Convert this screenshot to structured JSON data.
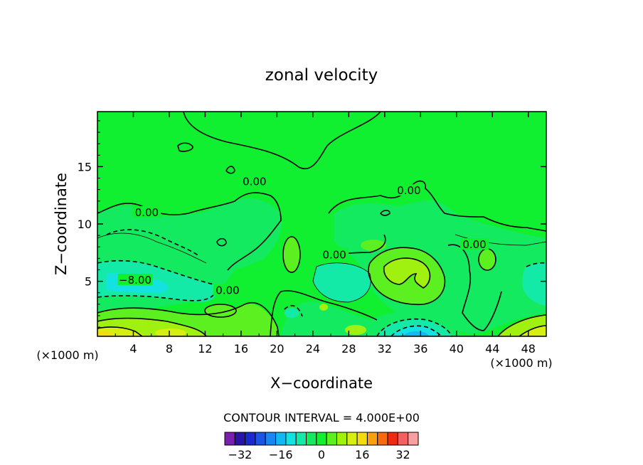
{
  "chart_data": {
    "type": "contour",
    "title": "zonal velocity",
    "xlabel": "X−coordinate",
    "ylabel": "Z−coordinate",
    "x_unit_left": "(×1000 m)",
    "x_unit_right": "(×1000 m)",
    "xlim": [
      0,
      50
    ],
    "ylim": [
      0.2,
      19.8
    ],
    "x_ticks": [
      4,
      8,
      12,
      16,
      20,
      24,
      28,
      32,
      36,
      40,
      44,
      48
    ],
    "y_ticks": [
      5,
      10,
      15
    ],
    "grid": false,
    "contour_interval_text": "CONTOUR INTERVAL = 4.000E+00",
    "contour_labels": [
      {
        "text": "0.00",
        "x": 17.5,
        "y": 13.7
      },
      {
        "text": "0.00",
        "x": 5.5,
        "y": 11.0
      },
      {
        "text": "0.00",
        "x": 34.7,
        "y": 12.9
      },
      {
        "text": "0.00",
        "x": 26.4,
        "y": 7.3
      },
      {
        "text": "0.00",
        "x": 42.0,
        "y": 8.2
      },
      {
        "text": "−8.00",
        "x": 4.2,
        "y": 5.1
      },
      {
        "text": "0.00",
        "x": 14.5,
        "y": 4.2
      }
    ],
    "colorbar": {
      "levels": [
        -36,
        -32,
        -28,
        -24,
        -20,
        -16,
        -12,
        -8,
        -4,
        0,
        4,
        8,
        12,
        16,
        20,
        24,
        28,
        32,
        36
      ],
      "colors": [
        "#7a1fb0",
        "#2a14a8",
        "#1a2ad0",
        "#1a55e6",
        "#1a86f0",
        "#14b8f0",
        "#14e2e0",
        "#14eaa8",
        "#14ea60",
        "#10f030",
        "#5cf020",
        "#a0f010",
        "#d6ee10",
        "#f4dc10",
        "#f8a010",
        "#f86a10",
        "#f02a10",
        "#f26060",
        "#f8a0a0"
      ],
      "tick_values": [
        -32,
        -16,
        0,
        16,
        32
      ],
      "tick_labels": [
        "−32",
        "−16",
        "0",
        "16",
        "32"
      ]
    },
    "colors": {
      "background_field": "#10f030"
    }
  }
}
